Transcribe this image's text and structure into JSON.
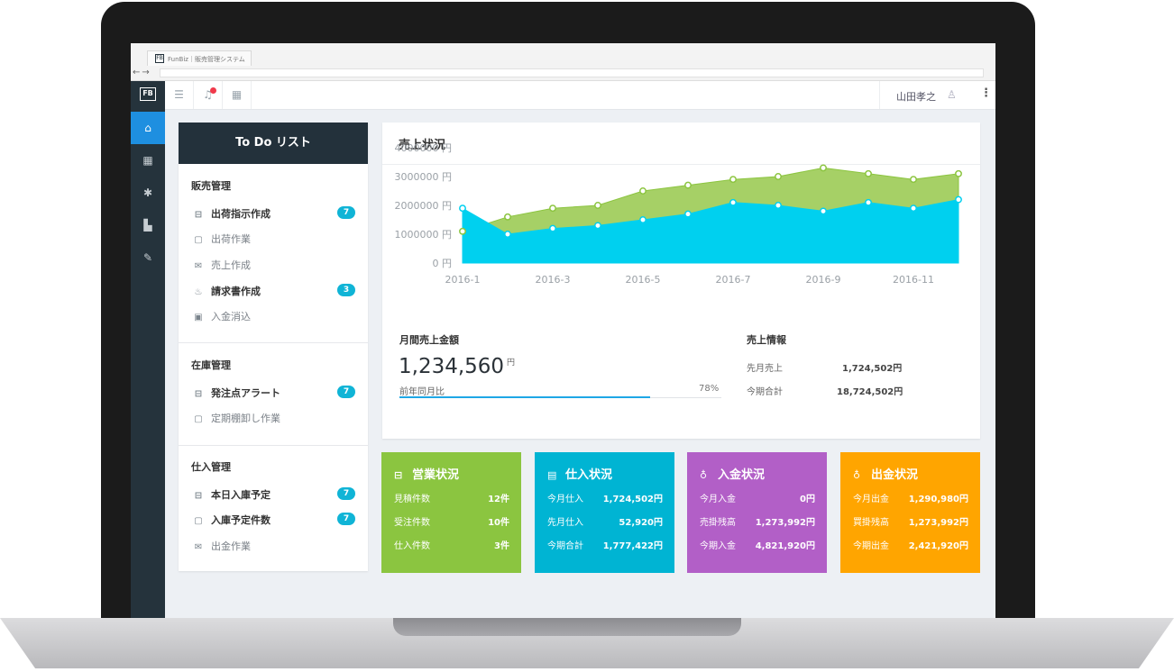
{
  "browser": {
    "tab_title": "FunBiz｜販売管理システム",
    "logo_text": "FB"
  },
  "topbar": {
    "user_name": "山田孝之"
  },
  "todo": {
    "title": "To Do リスト",
    "sections": [
      {
        "title": "販売管理",
        "items": [
          {
            "label": "出荷指示作成",
            "badge": "7",
            "icon": "inbox-icon"
          },
          {
            "label": "出荷作業",
            "icon": "document-icon"
          },
          {
            "label": "売上作成",
            "icon": "mail-icon"
          },
          {
            "label": "請求書作成",
            "badge": "3",
            "icon": "fire-icon"
          },
          {
            "label": "入金消込",
            "icon": "receipt-icon"
          }
        ]
      },
      {
        "title": "在庫管理",
        "items": [
          {
            "label": "発注点アラート",
            "badge": "7",
            "icon": "inbox-icon"
          },
          {
            "label": "定期棚卸し作業",
            "icon": "document-icon"
          }
        ]
      },
      {
        "title": "仕入管理",
        "items": [
          {
            "label": "本日入庫予定",
            "badge": "7",
            "icon": "inbox-icon"
          },
          {
            "label": "入庫予定件数",
            "badge": "7",
            "icon": "document-icon"
          },
          {
            "label": "出金作業",
            "icon": "mail-icon"
          }
        ]
      }
    ]
  },
  "sales": {
    "title": "売上状況",
    "monthly": {
      "label": "月間売上金額",
      "value": "1,234,560",
      "unit": "円",
      "compare_label": "前年同月比",
      "compare_value": "78%",
      "compare_ratio": 0.78
    },
    "info": {
      "title": "売上情報",
      "rows": [
        {
          "label": "先月売上",
          "value": "1,724,502円"
        },
        {
          "label": "今期合計",
          "value": "18,724,502円"
        }
      ]
    }
  },
  "chart_data": {
    "type": "area",
    "x": [
      "2016-1",
      "2016-2",
      "2016-3",
      "2016-4",
      "2016-5",
      "2016-6",
      "2016-7",
      "2016-8",
      "2016-9",
      "2016-10",
      "2016-11",
      "2016-12"
    ],
    "x_tick_labels": [
      "2016-1",
      "2016-3",
      "2016-5",
      "2016-7",
      "2016-9",
      "2016-11"
    ],
    "y_tick_labels": [
      "4000000 円",
      "3000000 円",
      "2000000 円",
      "1000000 円",
      "0 円"
    ],
    "ylim": [
      0,
      4000000
    ],
    "series": [
      {
        "values": [
          1100000,
          1600000,
          1900000,
          2000000,
          2500000,
          2700000,
          2900000,
          3000000,
          3300000,
          3100000,
          2900000,
          3100000
        ],
        "color": "#8cc540"
      },
      {
        "values": [
          1900000,
          1000000,
          1200000,
          1300000,
          1500000,
          1700000,
          2100000,
          2000000,
          1800000,
          2100000,
          1900000,
          2200000
        ],
        "color": "#00d0ef"
      }
    ]
  },
  "cards": [
    {
      "title": "営業状況",
      "color": "#8bc540",
      "icon": "tray-icon",
      "rows": [
        {
          "label": "見積件数",
          "value": "12件"
        },
        {
          "label": "受注件数",
          "value": "10件"
        },
        {
          "label": "仕入件数",
          "value": "3件"
        }
      ]
    },
    {
      "title": "仕入状況",
      "color": "#00b4d3",
      "icon": "wallet-icon",
      "rows": [
        {
          "label": "今月仕入",
          "value": "1,724,502円"
        },
        {
          "label": "先月仕入",
          "value": "52,920円"
        },
        {
          "label": "今期合計",
          "value": "1,777,422円"
        }
      ]
    },
    {
      "title": "入金状況",
      "color": "#b25fc7",
      "icon": "bag-icon",
      "rows": [
        {
          "label": "今月入金",
          "value": "0円"
        },
        {
          "label": "売掛残高",
          "value": "1,273,992円"
        },
        {
          "label": "今期入金",
          "value": "4,821,920円"
        }
      ]
    },
    {
      "title": "出金状況",
      "color": "#ffa500",
      "icon": "bag-icon",
      "rows": [
        {
          "label": "今月出金",
          "value": "1,290,980円"
        },
        {
          "label": "買掛残高",
          "value": "1,273,992円"
        },
        {
          "label": "今期出金",
          "value": "2,421,920円"
        }
      ]
    }
  ]
}
